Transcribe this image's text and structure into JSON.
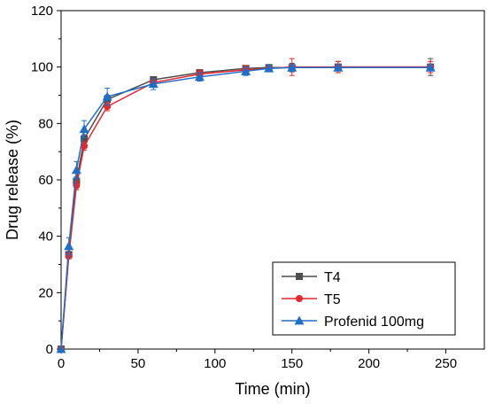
{
  "chart_data": {
    "type": "line",
    "xlabel": "Time (min)",
    "ylabel": "Drug release (%)",
    "xlim": [
      0,
      275
    ],
    "ylim": [
      0,
      120
    ],
    "xticks": [
      0,
      50,
      100,
      150,
      200,
      250
    ],
    "yticks": [
      0,
      20,
      40,
      60,
      80,
      100,
      120
    ],
    "legend_position": "bottom-right",
    "grid": false,
    "x": [
      0,
      5,
      10,
      15,
      30,
      60,
      90,
      120,
      135,
      150,
      180,
      240
    ],
    "series": [
      {
        "name": "T4",
        "color": "#4d4d4d",
        "marker": "square",
        "values": [
          0,
          33.5,
          59.5,
          74.5,
          88.5,
          95.5,
          98,
          99.5,
          99.8,
          99.8,
          100,
          100
        ],
        "errors": [
          0,
          1,
          1.5,
          1.5,
          1.5,
          1,
          1,
          1,
          1,
          1.5,
          2,
          3
        ]
      },
      {
        "name": "T5",
        "color": "#e8272c",
        "marker": "circle",
        "values": [
          0,
          33,
          58,
          72,
          86,
          94.5,
          97.5,
          99,
          99.5,
          100,
          100,
          100
        ],
        "errors": [
          0,
          1,
          1.5,
          1.5,
          1.5,
          1.5,
          1.5,
          1.5,
          1,
          3,
          2,
          2
        ]
      },
      {
        "name": "Profenid 100mg",
        "color": "#1f6fc8",
        "marker": "triangle",
        "values": [
          0,
          36.5,
          63.5,
          78,
          89.5,
          94,
          96.5,
          98.5,
          99.5,
          99.8,
          99.8,
          99.8
        ],
        "errors": [
          0,
          3,
          3,
          3,
          3,
          2,
          1.5,
          1.5,
          1,
          1,
          1,
          1
        ]
      }
    ]
  }
}
